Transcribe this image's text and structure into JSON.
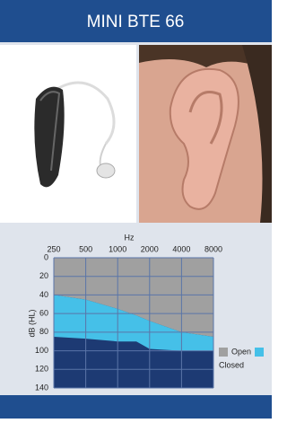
{
  "header": {
    "title": "MINI BTE 66"
  },
  "chart_data": {
    "type": "area",
    "xlabel": "Hz",
    "ylabel": "dB (HL)",
    "x": [
      250,
      500,
      1000,
      1500,
      2000,
      4000,
      8000
    ],
    "xlim": [
      250,
      8000
    ],
    "xticks": [
      250,
      500,
      1000,
      2000,
      4000,
      8000
    ],
    "xscale": "log",
    "ylim": [
      0,
      140
    ],
    "yticks": [
      0,
      20,
      40,
      60,
      80,
      100,
      120,
      140
    ],
    "y_inverted": true,
    "grid": true,
    "background_color": "#1d3a73",
    "series": [
      {
        "name": "Open",
        "color": "#a0a0a0",
        "values": [
          40,
          45,
          55,
          62,
          68,
          80,
          85
        ]
      },
      {
        "name": "Closed",
        "color": "#45c0e8",
        "values": [
          85,
          87,
          90,
          90,
          98,
          100,
          100
        ]
      }
    ],
    "legend": "right"
  }
}
